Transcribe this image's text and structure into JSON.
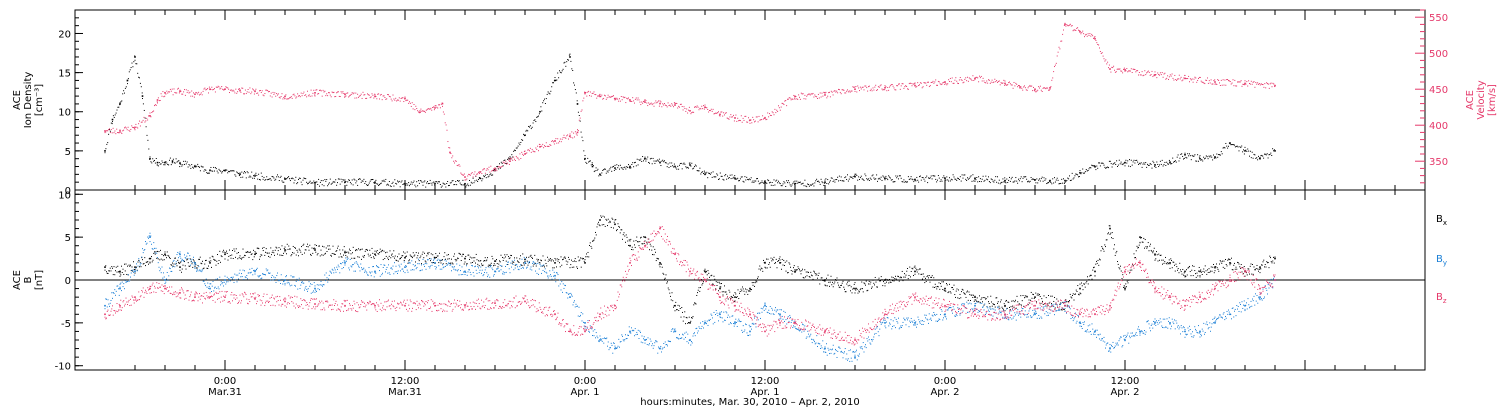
{
  "chart_data": [
    {
      "type": "scatter",
      "panel": "plasma",
      "ylabel_lines": [
        "ACE",
        "Ion Density",
        "[cm⁻³]"
      ],
      "y2label_lines": [
        "ACE",
        "Velocity",
        "[km/s]"
      ],
      "ylim": [
        0,
        23
      ],
      "y2lim": [
        310,
        560
      ],
      "yticks": [
        0,
        5,
        10,
        15,
        20
      ],
      "y2ticks": [
        350,
        400,
        450,
        500,
        550
      ],
      "series": [
        {
          "axis": "left",
          "color": "#000000",
          "x": [
            -8,
            -7.5,
            -7,
            -6.5,
            -6,
            -5.5,
            -5,
            -4.5,
            -4,
            -3.5,
            -3,
            -2,
            -1,
            0,
            1,
            2,
            4,
            6,
            8,
            10,
            12,
            14,
            16,
            17,
            18,
            19,
            20,
            21,
            22,
            23,
            23.5,
            24,
            24.5,
            25,
            26,
            27,
            28,
            29,
            30,
            31,
            32,
            34,
            36,
            38,
            40,
            42,
            44,
            46,
            48,
            50,
            52,
            54,
            55,
            56,
            57,
            58,
            60,
            62,
            63,
            64,
            65,
            66,
            67,
            68,
            69,
            70
          ],
          "y": [
            5,
            9,
            11,
            14,
            17,
            12,
            4,
            3.5,
            3.5,
            3.7,
            3.4,
            3,
            2.5,
            2.5,
            2,
            1.8,
            1.4,
            0.9,
            1,
            1,
            0.8,
            0.8,
            0.8,
            1.5,
            2.5,
            4,
            7,
            10,
            14,
            17,
            11,
            4,
            3,
            2,
            2.8,
            3,
            4,
            3.5,
            3,
            3.2,
            2,
            1.5,
            1,
            0.8,
            1,
            1.7,
            1.5,
            1.3,
            1.5,
            1.5,
            1.2,
            1.3,
            1.2,
            1.2,
            2.2,
            3,
            3.5,
            3.2,
            3.5,
            4.5,
            4,
            4.2,
            6,
            5,
            4,
            5
          ]
        },
        {
          "axis": "right",
          "color": "#e5386a",
          "x": [
            -8,
            -7,
            -6,
            -5,
            -4.5,
            -4,
            -3,
            -2,
            -1,
            0,
            1,
            2,
            4,
            6,
            8,
            10,
            12,
            13,
            14,
            14.5,
            15,
            16,
            17,
            18,
            19,
            20,
            21,
            22,
            23,
            23.5,
            24,
            25,
            26,
            27,
            28,
            29,
            30,
            31,
            32,
            33,
            34,
            35,
            36,
            38,
            40,
            42,
            44,
            46,
            48,
            50,
            52,
            53,
            54,
            55,
            56,
            57,
            58,
            59,
            60,
            62,
            64,
            66,
            68,
            70
          ],
          "y": [
            392,
            392,
            397,
            413,
            435,
            445,
            447,
            443,
            450,
            450,
            448,
            447,
            440,
            445,
            443,
            440,
            437,
            418,
            424,
            430,
            362,
            328,
            335,
            340,
            350,
            360,
            370,
            378,
            385,
            390,
            445,
            440,
            437,
            435,
            432,
            430,
            428,
            420,
            425,
            415,
            410,
            407,
            410,
            440,
            442,
            450,
            452,
            455,
            460,
            465,
            458,
            453,
            450,
            452,
            540,
            530,
            520,
            478,
            477,
            470,
            465,
            460,
            458,
            455
          ]
        }
      ]
    },
    {
      "type": "scatter",
      "panel": "magnetic",
      "ylabel_lines": [
        "ACE",
        "B",
        "[nT]"
      ],
      "ylim": [
        -10.5,
        10.5
      ],
      "yticks": [
        -10,
        -5,
        0,
        5,
        10
      ],
      "zero_line": true,
      "legend_position": "right",
      "series": [
        {
          "name": "Bx",
          "name_main": "B",
          "name_sub": "x",
          "color": "#000000",
          "x": [
            -8,
            -7,
            -6,
            -5,
            -4,
            -3,
            -2,
            -1,
            0,
            2,
            4,
            6,
            8,
            10,
            12,
            14,
            16,
            18,
            20,
            22,
            24,
            25,
            26,
            27,
            28,
            29,
            30,
            31,
            32,
            33,
            34,
            35,
            36,
            37,
            38,
            40,
            42,
            44,
            46,
            48,
            50,
            52,
            54,
            56,
            57,
            58,
            59,
            60,
            61,
            62,
            63,
            64,
            65,
            66,
            67,
            68,
            69,
            70
          ],
          "y": [
            1.5,
            1,
            1.5,
            2.5,
            3,
            1.5,
            2,
            2,
            3,
            3,
            3.5,
            3.5,
            3.2,
            3,
            2.6,
            2.6,
            2.5,
            2.2,
            2.4,
            2,
            2,
            7,
            6.5,
            4,
            5,
            2,
            -3,
            -5,
            1,
            -1,
            -2,
            -1,
            2,
            2,
            1,
            0,
            -1,
            0,
            1,
            -1,
            -2,
            -3,
            -2,
            -3,
            -1,
            1,
            6,
            -1,
            5,
            3,
            2,
            1,
            1,
            1.5,
            2,
            1,
            1.5,
            2.5
          ]
        },
        {
          "name": "By",
          "name_main": "B",
          "name_sub": "y",
          "color": "#1a7fd6",
          "x": [
            -8,
            -7,
            -6,
            -5,
            -4,
            -3,
            -2,
            -1,
            0,
            2,
            4,
            6,
            8,
            10,
            12,
            14,
            16,
            18,
            20,
            22,
            23,
            24,
            25,
            26,
            27,
            28,
            29,
            30,
            31,
            32,
            33,
            34,
            35,
            36,
            37,
            38,
            40,
            42,
            44,
            46,
            48,
            50,
            52,
            54,
            56,
            57,
            58,
            59,
            60,
            61,
            62,
            63,
            64,
            65,
            66,
            67,
            68,
            69,
            70
          ],
          "y": [
            -3,
            -1,
            1,
            5,
            0,
            3,
            2,
            -1,
            0,
            1,
            0,
            -1,
            2,
            1,
            1.5,
            2,
            1,
            1,
            2,
            0.5,
            -2,
            -5,
            -7,
            -8,
            -6,
            -7,
            -8,
            -6,
            -7,
            -5,
            -4,
            -5,
            -6,
            -3,
            -4,
            -5,
            -8,
            -9,
            -5,
            -5,
            -4,
            -3,
            -4,
            -4,
            -3,
            -5,
            -6,
            -8,
            -7,
            -6,
            -5,
            -5,
            -6,
            -6,
            -5,
            -4,
            -3,
            -2,
            0
          ]
        },
        {
          "name": "Bz",
          "name_main": "B",
          "name_sub": "z",
          "color": "#e5386a",
          "x": [
            -8,
            -7,
            -6,
            -5,
            -4,
            -3,
            -2,
            -1,
            0,
            2,
            4,
            6,
            8,
            10,
            12,
            14,
            16,
            18,
            20,
            22,
            23,
            24,
            25,
            26,
            27,
            28,
            29,
            30,
            31,
            32,
            33,
            34,
            35,
            36,
            37,
            38,
            40,
            42,
            44,
            46,
            48,
            50,
            52,
            54,
            56,
            57,
            58,
            59,
            60,
            61,
            62,
            63,
            64,
            65,
            66,
            67,
            68,
            69,
            70
          ],
          "y": [
            -4,
            -3,
            -2,
            -1,
            -1,
            -1.5,
            -2,
            -2,
            -2,
            -2.2,
            -2.5,
            -2.8,
            -3,
            -3,
            -3,
            -3,
            -3,
            -2.7,
            -2.5,
            -4,
            -6,
            -6,
            -4,
            -3,
            2,
            4,
            6,
            3,
            1,
            0,
            -2,
            -3,
            -4,
            -6,
            -5,
            -5,
            -6,
            -7,
            -4,
            -2,
            -3,
            -4,
            -4,
            -3,
            -3,
            -4,
            -4,
            -3,
            1,
            2,
            -1,
            -2,
            -3,
            -2,
            -1,
            0,
            1,
            -1,
            0
          ]
        }
      ]
    }
  ],
  "time_axis": {
    "range": [
      -10,
      80
    ],
    "ticks": [
      {
        "h": 0,
        "line1": "0:00",
        "line2": "Mar.31"
      },
      {
        "h": 12,
        "line1": "12:00",
        "line2": "Mar.31"
      },
      {
        "h": 24,
        "line1": "0:00",
        "line2": "Apr. 1"
      },
      {
        "h": 36,
        "line1": "12:00",
        "line2": "Apr. 1"
      },
      {
        "h": 48,
        "line1": "0:00",
        "line2": "Apr. 2"
      },
      {
        "h": 60,
        "line1": "12:00",
        "line2": "Apr. 2"
      }
    ],
    "title": "hours:minutes, Mar. 30, 2010 – Apr.  2, 2010"
  }
}
